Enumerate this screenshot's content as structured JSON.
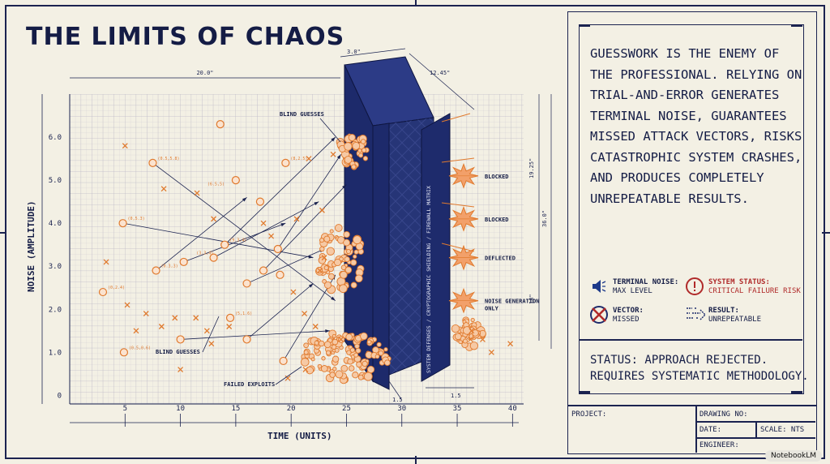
{
  "title": "THE LIMITS OF CHAOS",
  "colors": {
    "ink": "#1b2350",
    "wall": "#1d2a6b",
    "orange": "#e07a2e",
    "paper": "#f3f0e4",
    "red": "#b02a2a"
  },
  "chart_data": {
    "type": "scatter",
    "xlabel": "TIME (UNITS)",
    "ylabel": "NOISE (AMPLITUDE)",
    "xticks": [
      5,
      10,
      15,
      20,
      25,
      30,
      35,
      40
    ],
    "yticks": [
      0,
      1.0,
      2.0,
      3.0,
      4.0,
      5.0,
      6.0
    ],
    "ytick_labels": [
      "0",
      "1.0",
      "2.0",
      "3.0",
      "4.0",
      "5.0",
      "6.0"
    ],
    "xlim": [
      0,
      41
    ],
    "ylim": [
      -0.2,
      7
    ],
    "grid": true,
    "series": [
      {
        "marker": "circle",
        "points": [
          [
            13.6,
            6.3
          ],
          [
            7.5,
            5.4
          ],
          [
            19.5,
            5.4
          ],
          [
            15,
            5
          ],
          [
            4.8,
            4
          ],
          [
            10.3,
            3.1
          ],
          [
            13,
            3.2
          ],
          [
            14,
            3.5
          ],
          [
            3,
            2.4
          ],
          [
            7.8,
            2.9
          ],
          [
            16,
            2.6
          ],
          [
            17.5,
            2.9
          ],
          [
            10,
            1.3
          ],
          [
            16,
            1.3
          ],
          [
            4.9,
            1
          ],
          [
            19.3,
            0.8
          ],
          [
            17.2,
            4.5
          ],
          [
            18.8,
            3.4
          ],
          [
            19,
            2.8
          ],
          [
            14.5,
            1.8
          ]
        ]
      },
      {
        "marker": "cross",
        "points": [
          [
            5,
            5.8
          ],
          [
            11.5,
            4.7
          ],
          [
            8.5,
            4.8
          ],
          [
            13,
            4.1
          ],
          [
            17.5,
            4
          ],
          [
            3.3,
            3.1
          ],
          [
            5.2,
            2.1
          ],
          [
            6.9,
            1.9
          ],
          [
            9.5,
            1.8
          ],
          [
            11.4,
            1.8
          ],
          [
            6,
            1.5
          ],
          [
            8.3,
            1.6
          ],
          [
            12.4,
            1.5
          ],
          [
            20.2,
            2.4
          ],
          [
            21.2,
            1.9
          ],
          [
            22.2,
            1.6
          ],
          [
            18.2,
            3.7
          ],
          [
            21.6,
            5.5
          ],
          [
            22.8,
            4.3
          ],
          [
            12.8,
            1.2
          ],
          [
            14.4,
            1.6
          ],
          [
            10,
            0.6
          ],
          [
            36.2,
            1.3
          ],
          [
            37.3,
            1.3
          ],
          [
            39.8,
            1.2
          ],
          [
            38.1,
            1.0
          ],
          [
            36.3,
            1.5
          ],
          [
            19.7,
            0.4
          ],
          [
            23,
            3.2
          ],
          [
            20.5,
            4.1
          ],
          [
            22.6,
            2.9
          ],
          [
            23.8,
            5.6
          ],
          [
            24.5,
            1.3
          ],
          [
            21.3,
            0.6
          ]
        ]
      }
    ],
    "point_labels": [
      "(0,2.4)",
      "(0.5,5.8)",
      "(6.5,5)",
      "(0.3,3)",
      "(0.5,0.6)",
      "(5,1.6)",
      "(9.3,4)",
      "(3.3,4)",
      "(8,2.5)",
      "(0,5.3)"
    ],
    "dimensions": [
      "20.0\"",
      "3.0\"",
      "12.45\"",
      "19.25\"",
      "36.0\"",
      "18\"",
      "1.5",
      "1.5"
    ],
    "wall_label": "SYSTEM DEFENSES / CRYPTOGRAPHIC SHIELDING / FIREWALL MATRIX",
    "annotations": [
      {
        "text": "BLIND GUESSES",
        "lines": 1
      },
      {
        "text": "BLIND GUESSES",
        "lines": 1
      },
      {
        "text": "FAILED EXPLOITS",
        "lines": 1
      }
    ],
    "impacts": [
      {
        "text": "BLOCKED",
        "level": 5.1
      },
      {
        "text": "BLOCKED",
        "level": 4.1
      },
      {
        "text": "DEFLECTED",
        "level": 3.2
      },
      {
        "text": "NOISE GENERATION ONLY",
        "level": 2.2
      }
    ]
  },
  "panel": {
    "text": "GUESSWORK IS THE ENEMY OF THE PROFESSIONAL. RELYING ON TRIAL-AND-ERROR GENERATES TERMINAL NOISE, GUARANTEES MISSED ATTACK VECTORS, RISKS CATASTROPHIC SYSTEM CRASHES, AND PRODUCES COMPLETELY UNREPEATABLE RESULTS.",
    "indicators": {
      "noise_label": "TERMINAL NOISE:",
      "noise_value": "MAX LEVEL",
      "status_label": "SYSTEM STATUS:",
      "status_value": "CRITICAL FAILURE RISK",
      "vector_label": "VECTOR:",
      "vector_value": "MISSED",
      "result_label": "RESULT:",
      "result_value": "UNREPEATABLE"
    },
    "status_line1": "STATUS: APPROACH REJECTED.",
    "status_line2": "REQUIRES SYSTEMATIC METHODOLOGY."
  },
  "title_block": {
    "project": "PROJECT:",
    "drawing_no": "DRAWING NO:",
    "date": "DATE:",
    "scale": "SCALE: NTS",
    "engineer": "ENGINEER:"
  },
  "badge": "NotebookLM"
}
